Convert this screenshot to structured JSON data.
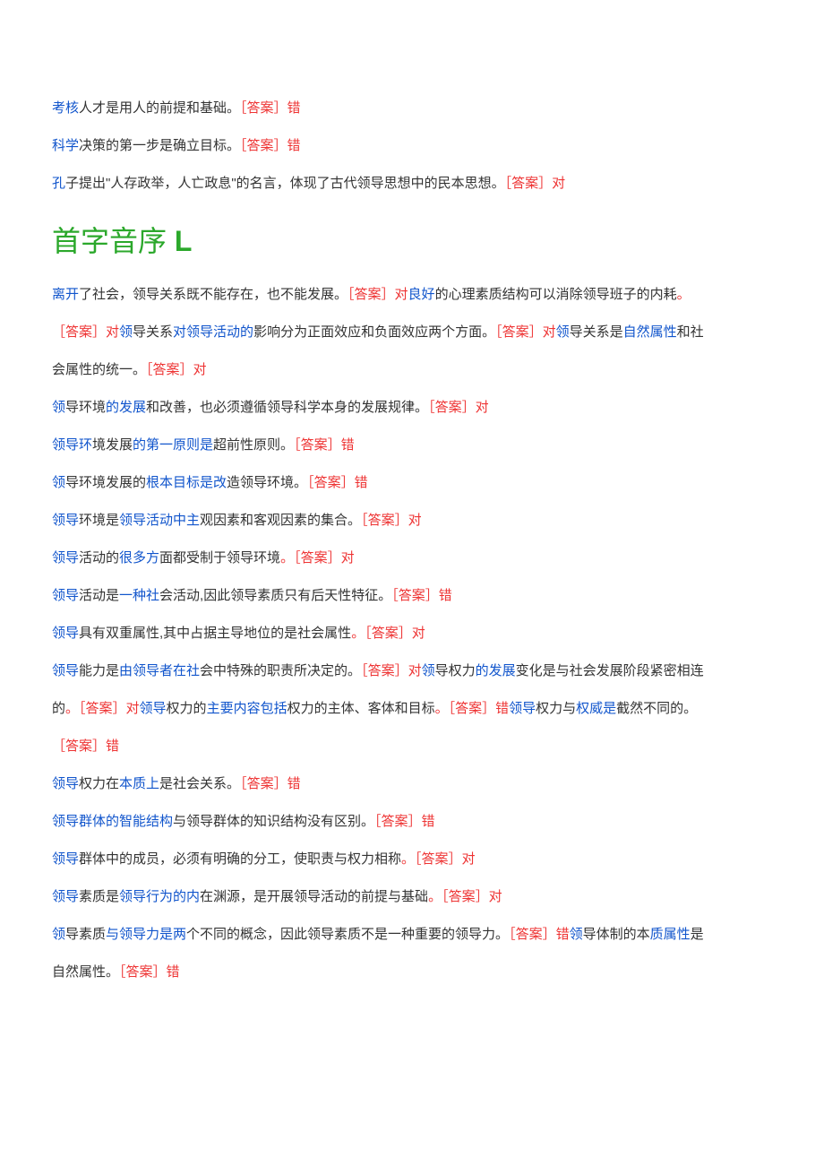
{
  "top_questions": [
    {
      "parts": [
        {
          "text": "考核",
          "color": "blue"
        },
        {
          "text": "人才是用人的前提和基础。",
          "color": "black"
        },
        {
          "text": "［答案］错",
          "color": "red"
        }
      ]
    },
    {
      "parts": [
        {
          "text": "科学",
          "color": "blue"
        },
        {
          "text": "决策的第一步是确立目标。",
          "color": "black"
        },
        {
          "text": "［答案］错",
          "color": "red"
        }
      ]
    },
    {
      "parts": [
        {
          "text": "孔",
          "color": "blue"
        },
        {
          "text": "子提出\"人存政举，人亡政息\"的名言，体现了古代领导思想中的民本思想。",
          "color": "black"
        },
        {
          "text": "［答案］对",
          "color": "red"
        }
      ]
    }
  ],
  "section_header": {
    "prefix": "首字音序 ",
    "letter": "L"
  },
  "questions": [
    {
      "parts": [
        {
          "text": "离开",
          "color": "blue"
        },
        {
          "text": "了社会，领导关系既不能存在，也不能发展。",
          "color": "black"
        },
        {
          "text": "［答案］对",
          "color": "red"
        },
        {
          "text": "良好",
          "color": "blue"
        },
        {
          "text": "的心理素质结构可以消除领导班子的内耗",
          "color": "black"
        },
        {
          "text": "。",
          "color": "red"
        }
      ]
    },
    {
      "parts": [
        {
          "text": "［答案］对",
          "color": "red"
        },
        {
          "text": "领",
          "color": "blue"
        },
        {
          "text": "导关系",
          "color": "black"
        },
        {
          "text": "对领导活动的",
          "color": "blue"
        },
        {
          "text": "影响分为正面效应和负面效应两个方面。",
          "color": "black"
        },
        {
          "text": "［答案］对",
          "color": "red"
        },
        {
          "text": "领",
          "color": "blue"
        },
        {
          "text": "导关系是",
          "color": "black"
        },
        {
          "text": "自然属性",
          "color": "blue"
        },
        {
          "text": "和社",
          "color": "black"
        }
      ]
    },
    {
      "parts": [
        {
          "text": "会属性的统一。",
          "color": "black"
        },
        {
          "text": "［答案］对",
          "color": "red"
        }
      ]
    },
    {
      "parts": [
        {
          "text": "领",
          "color": "blue"
        },
        {
          "text": "导环境",
          "color": "black"
        },
        {
          "text": "的发展",
          "color": "blue"
        },
        {
          "text": "和改善，也必须遵循领导科学本身的发展规律。",
          "color": "black"
        },
        {
          "text": "［答案］对",
          "color": "red"
        }
      ]
    },
    {
      "parts": [
        {
          "text": "领导环",
          "color": "blue"
        },
        {
          "text": "境发展",
          "color": "black"
        },
        {
          "text": "的第一原则是",
          "color": "blue"
        },
        {
          "text": "超前性原则。",
          "color": "black"
        },
        {
          "text": "［答案］错",
          "color": "red"
        }
      ]
    },
    {
      "parts": [
        {
          "text": "领",
          "color": "blue"
        },
        {
          "text": "导环境发展的",
          "color": "black"
        },
        {
          "text": "根本目标是改",
          "color": "blue"
        },
        {
          "text": "造领导环境。",
          "color": "black"
        },
        {
          "text": "［答案］错",
          "color": "red"
        }
      ]
    },
    {
      "parts": [
        {
          "text": "领导",
          "color": "blue"
        },
        {
          "text": "环境是",
          "color": "black"
        },
        {
          "text": "领导活动中主",
          "color": "blue"
        },
        {
          "text": "观因素和客观因素的集合。",
          "color": "black"
        },
        {
          "text": "［答案］对",
          "color": "red"
        }
      ]
    },
    {
      "parts": [
        {
          "text": "领导",
          "color": "blue"
        },
        {
          "text": "活动的",
          "color": "black"
        },
        {
          "text": "很多方",
          "color": "blue"
        },
        {
          "text": "面都受制于领导环境",
          "color": "black"
        },
        {
          "text": "。［答案］对",
          "color": "red"
        }
      ]
    },
    {
      "parts": [
        {
          "text": "领导",
          "color": "blue"
        },
        {
          "text": "活动是",
          "color": "black"
        },
        {
          "text": "一种社",
          "color": "blue"
        },
        {
          "text": "会活动,因此领导素质只有后天性特征。",
          "color": "black"
        },
        {
          "text": "［答案］错",
          "color": "red"
        }
      ]
    },
    {
      "parts": [
        {
          "text": "领导",
          "color": "blue"
        },
        {
          "text": "具有双重属性,其中占据主导地位的是社会属性",
          "color": "black"
        },
        {
          "text": "。［答案］对",
          "color": "red"
        }
      ]
    },
    {
      "parts": [
        {
          "text": "领导",
          "color": "blue"
        },
        {
          "text": "能力是",
          "color": "black"
        },
        {
          "text": "由领导者在社",
          "color": "blue"
        },
        {
          "text": "会中特殊的职责所决定的。",
          "color": "black"
        },
        {
          "text": "［答案］对",
          "color": "red"
        },
        {
          "text": "领",
          "color": "blue"
        },
        {
          "text": "导权力",
          "color": "black"
        },
        {
          "text": "的发展",
          "color": "blue"
        },
        {
          "text": "变化是与社会发展阶段紧密相连",
          "color": "black"
        }
      ]
    },
    {
      "parts": [
        {
          "text": "的",
          "color": "black"
        },
        {
          "text": "。［答案］对",
          "color": "red"
        },
        {
          "text": "领导",
          "color": "blue"
        },
        {
          "text": "权力的",
          "color": "black"
        },
        {
          "text": "主要内容包括",
          "color": "blue"
        },
        {
          "text": "权力的主体、客体和目标",
          "color": "black"
        },
        {
          "text": "。［答案］错",
          "color": "red"
        },
        {
          "text": "领导",
          "color": "blue"
        },
        {
          "text": "权力与",
          "color": "black"
        },
        {
          "text": "权威是",
          "color": "blue"
        },
        {
          "text": "截然不同的。",
          "color": "black"
        }
      ]
    },
    {
      "parts": [
        {
          "text": "［答案］错",
          "color": "red"
        }
      ]
    },
    {
      "parts": [
        {
          "text": "领导",
          "color": "blue"
        },
        {
          "text": "权力在",
          "color": "black"
        },
        {
          "text": "本质上",
          "color": "blue"
        },
        {
          "text": "是社会关系。",
          "color": "black"
        },
        {
          "text": "［答案］错",
          "color": "red"
        }
      ]
    },
    {
      "parts": [
        {
          "text": "领导群体的智能结构",
          "color": "blue"
        },
        {
          "text": "与领导群体的知识结构没有区别。",
          "color": "black"
        },
        {
          "text": "［答案］错",
          "color": "red"
        }
      ]
    },
    {
      "parts": [
        {
          "text": "领导",
          "color": "blue"
        },
        {
          "text": "群体中的成员，必须有明确的分工，使职责与权力相称",
          "color": "black"
        },
        {
          "text": "。［答案］对",
          "color": "red"
        }
      ]
    },
    {
      "parts": [
        {
          "text": "领导",
          "color": "blue"
        },
        {
          "text": "素质是",
          "color": "black"
        },
        {
          "text": "领导行为的内",
          "color": "blue"
        },
        {
          "text": "在渊源，是开展领导活动的前提与基础",
          "color": "black"
        },
        {
          "text": "。［答案］对",
          "color": "red"
        }
      ]
    },
    {
      "parts": [
        {
          "text": "领",
          "color": "blue"
        },
        {
          "text": "导素质",
          "color": "black"
        },
        {
          "text": "与领导力是两",
          "color": "blue"
        },
        {
          "text": "个不同的概念，因此领导素质不是一种重要的领导力。",
          "color": "black"
        },
        {
          "text": "［答案］错",
          "color": "red"
        },
        {
          "text": "领",
          "color": "blue"
        },
        {
          "text": "导体制的本",
          "color": "black"
        },
        {
          "text": "质属性",
          "color": "blue"
        },
        {
          "text": "是",
          "color": "black"
        }
      ]
    },
    {
      "parts": [
        {
          "text": "自然属性。",
          "color": "black"
        },
        {
          "text": "［答案］错",
          "color": "red"
        }
      ]
    }
  ]
}
